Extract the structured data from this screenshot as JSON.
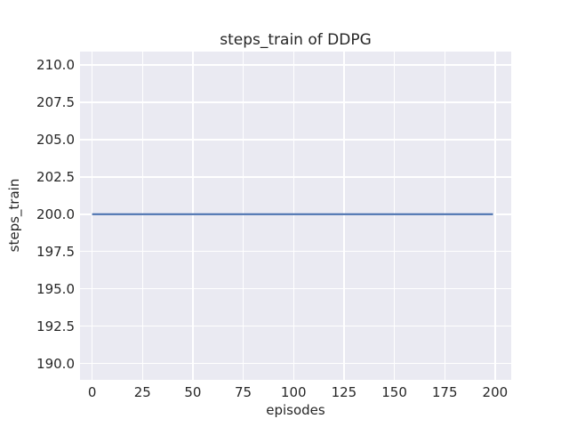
{
  "chart_data": {
    "type": "line",
    "title": "steps_train of DDPG",
    "xlabel": "episodes",
    "ylabel": "steps_train",
    "x_ticks": [
      0,
      25,
      50,
      75,
      100,
      125,
      150,
      175,
      200
    ],
    "x_tick_labels": [
      "0",
      "25",
      "50",
      "75",
      "100",
      "125",
      "150",
      "175",
      "200"
    ],
    "y_ticks": [
      190.0,
      192.5,
      195.0,
      197.5,
      200.0,
      202.5,
      205.0,
      207.5,
      210.0
    ],
    "y_tick_labels": [
      "190.0",
      "192.5",
      "195.0",
      "197.5",
      "200.0",
      "202.5",
      "205.0",
      "207.5",
      "210.0"
    ],
    "xlim": [
      -6,
      208
    ],
    "ylim": [
      188.9,
      210.9
    ],
    "grid": true,
    "legend": false,
    "series": [
      {
        "name": "steps_train",
        "color": "#4c72b0",
        "x": [
          0,
          199
        ],
        "y": [
          200,
          200
        ]
      }
    ]
  },
  "style": {
    "figure_bg": "#ffffff",
    "plot_bg": "#eaeaf2",
    "grid_color": "#ffffff",
    "text_color": "#262626",
    "line_width": 2.2,
    "grid_width": 1.4
  }
}
